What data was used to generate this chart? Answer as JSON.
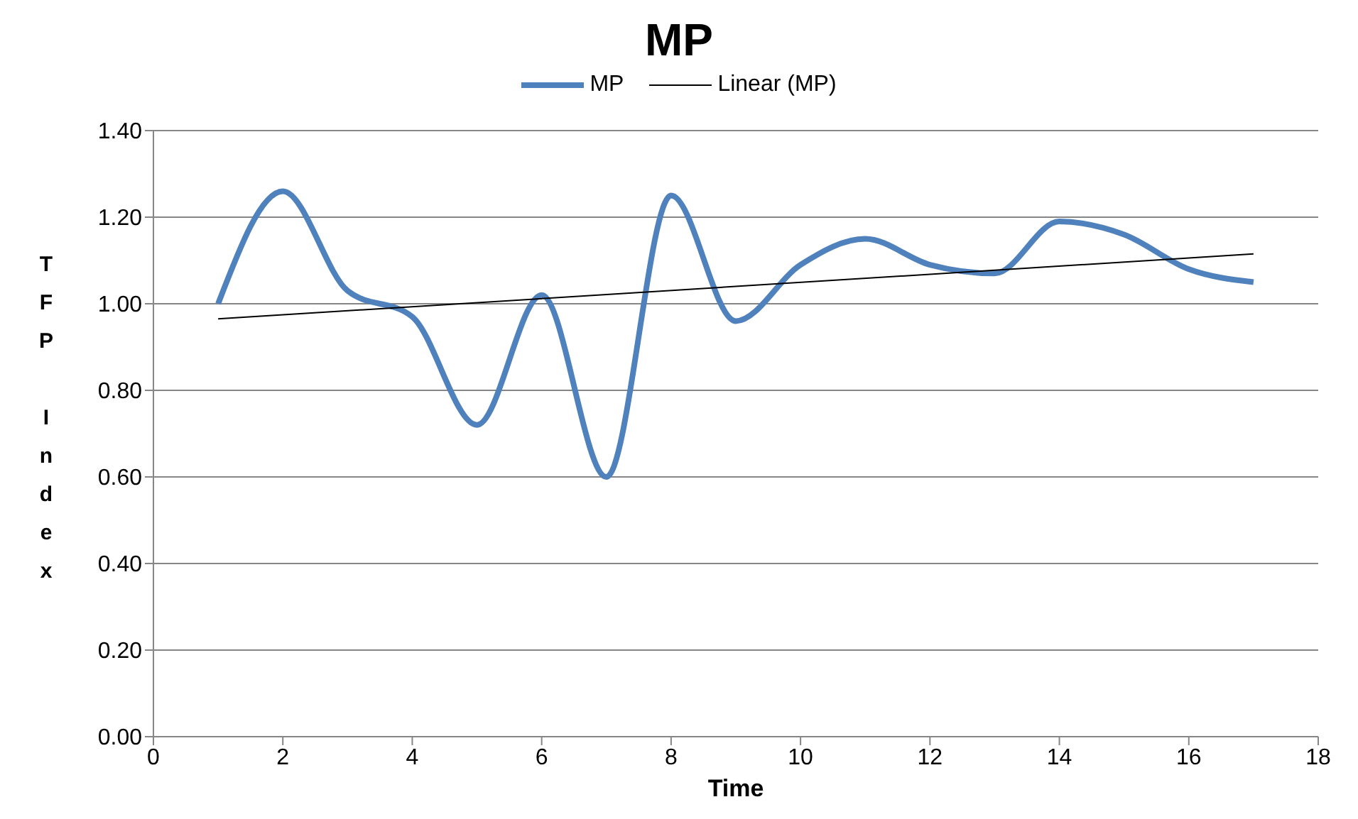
{
  "chart_data": {
    "type": "line",
    "title": "MP",
    "xlabel": "Time",
    "ylabel": "TFP Index",
    "legend": "top",
    "grid": "y",
    "marker": "none",
    "xlim": [
      0,
      18
    ],
    "xticks": [
      0,
      2,
      4,
      6,
      8,
      10,
      12,
      14,
      16,
      18
    ],
    "ylim": [
      0,
      1.4
    ],
    "yticks": [
      {
        "value": 0,
        "label": "0.00"
      },
      {
        "value": 0.2,
        "label": "0.20"
      },
      {
        "value": 0.4,
        "label": "0.40"
      },
      {
        "value": 0.6,
        "label": "0.60"
      },
      {
        "value": 0.8,
        "label": "0.80"
      },
      {
        "value": 1.0,
        "label": "1.00"
      },
      {
        "value": 1.2,
        "label": "1.20"
      },
      {
        "value": 1.4,
        "label": "1.40"
      }
    ],
    "series": [
      {
        "name": "MP",
        "color": "#4f81bd",
        "x": [
          1,
          2,
          3,
          4,
          5,
          6,
          7,
          8,
          9,
          10,
          11,
          12,
          13,
          14,
          15,
          16,
          17
        ],
        "values": [
          1.0,
          1.26,
          1.03,
          0.97,
          0.72,
          1.02,
          0.6,
          1.25,
          0.96,
          1.09,
          1.15,
          1.09,
          1.07,
          1.19,
          1.16,
          1.08,
          1.05
        ]
      },
      {
        "name": "Linear (MP)",
        "color": "#000000",
        "x": [
          1,
          17
        ],
        "values": [
          0.965,
          1.115
        ]
      }
    ]
  }
}
